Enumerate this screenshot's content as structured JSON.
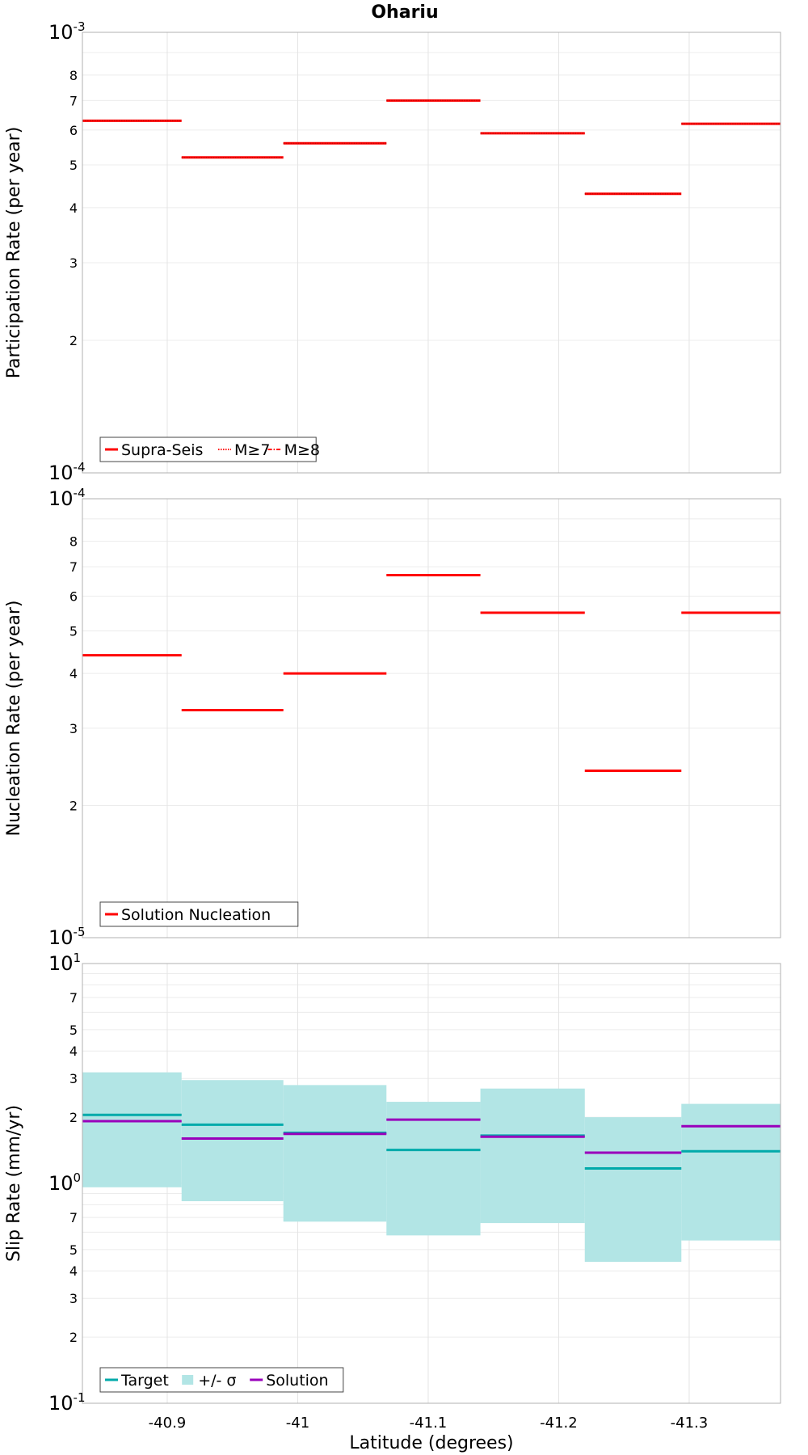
{
  "chart_data": [
    {
      "type": "line",
      "title": "Ohariu",
      "ylabel": "Participation Rate (per year)",
      "xlabel": "",
      "yscale": "log",
      "ylim": [
        0.0001,
        0.001
      ],
      "xlim": [
        -40.835,
        -41.37
      ],
      "grid": true,
      "legend": "bottom-left",
      "ytick_major": [
        {
          "base": "10",
          "exp": "-4"
        },
        {
          "base": "10",
          "exp": "-3"
        }
      ],
      "ytick_minor": [
        "2",
        "3",
        "4",
        "5",
        "6",
        "7",
        "8"
      ],
      "segments_x": [
        [
          -40.835,
          -40.911
        ],
        [
          -40.911,
          -40.989
        ],
        [
          -40.989,
          -41.068
        ],
        [
          -41.068,
          -41.14
        ],
        [
          -41.14,
          -41.22
        ],
        [
          -41.22,
          -41.294
        ],
        [
          -41.294,
          -41.37
        ]
      ],
      "series": [
        {
          "name": "Supra-Seis",
          "style": "solid",
          "color": "#ff0000",
          "values": [
            0.00063,
            0.00052,
            0.00056,
            0.0007,
            0.00059,
            0.00043,
            0.00062
          ]
        },
        {
          "name": "M≥7",
          "style": "dotted",
          "color": "#ff0000",
          "values": [
            0.00063,
            0.00052,
            0.00056,
            0.0007,
            0.00059,
            0.00043,
            0.00062
          ]
        },
        {
          "name": "M≥8",
          "style": "dashdot",
          "color": "#ff0000",
          "values": []
        }
      ]
    },
    {
      "type": "line",
      "title": "",
      "ylabel": "Nucleation Rate (per year)",
      "xlabel": "",
      "yscale": "log",
      "ylim": [
        1e-05,
        0.0001
      ],
      "xlim": [
        -40.835,
        -41.37
      ],
      "grid": true,
      "legend": "bottom-left",
      "ytick_major": [
        {
          "base": "10",
          "exp": "-5"
        },
        {
          "base": "10",
          "exp": "-4"
        }
      ],
      "ytick_minor": [
        "2",
        "3",
        "4",
        "5",
        "6",
        "7",
        "8"
      ],
      "segments_x": [
        [
          -40.835,
          -40.911
        ],
        [
          -40.911,
          -40.989
        ],
        [
          -40.989,
          -41.068
        ],
        [
          -41.068,
          -41.14
        ],
        [
          -41.14,
          -41.22
        ],
        [
          -41.22,
          -41.294
        ],
        [
          -41.294,
          -41.37
        ]
      ],
      "series": [
        {
          "name": "Solution Nucleation",
          "style": "solid",
          "color": "#ff0000",
          "values": [
            4.4e-05,
            3.3e-05,
            4e-05,
            6.7e-05,
            5.5e-05,
            2.4e-05,
            5.5e-05
          ]
        }
      ]
    },
    {
      "type": "line",
      "title": "",
      "ylabel": "Slip Rate (mm/yr)",
      "xlabel": "Latitude (degrees)",
      "yscale": "log",
      "ylim": [
        0.1,
        10
      ],
      "xlim": [
        -40.835,
        -41.37
      ],
      "grid": true,
      "legend": "bottom-left",
      "ytick_major": [
        {
          "base": "10",
          "exp": "-1"
        },
        {
          "base": "10",
          "exp": "0"
        },
        {
          "base": "10",
          "exp": "1"
        }
      ],
      "ytick_minor": [
        "2",
        "3",
        "4",
        "5",
        "7"
      ],
      "xticks": [
        -40.9,
        -41.0,
        -41.1,
        -41.2,
        -41.3
      ],
      "xtick_labels": [
        "-40.9",
        "-41",
        "-41.1",
        "-41.2",
        "-41.3"
      ],
      "segments_x": [
        [
          -40.835,
          -40.911
        ],
        [
          -40.911,
          -40.989
        ],
        [
          -40.989,
          -41.068
        ],
        [
          -41.068,
          -41.14
        ],
        [
          -41.14,
          -41.22
        ],
        [
          -41.22,
          -41.294
        ],
        [
          -41.294,
          -41.37
        ]
      ],
      "series": [
        {
          "name": "Target",
          "style": "solid",
          "color": "#00aaaa",
          "values": [
            2.05,
            1.85,
            1.7,
            1.42,
            1.65,
            1.17,
            1.4
          ]
        },
        {
          "name": "+/- σ",
          "style": "band",
          "color": "#b2e5e5",
          "lower": [
            0.96,
            0.83,
            0.67,
            0.58,
            0.66,
            0.44,
            0.55
          ],
          "upper": [
            3.2,
            2.95,
            2.8,
            2.35,
            2.7,
            2.0,
            2.3
          ]
        },
        {
          "name": "Solution",
          "style": "solid",
          "color": "#9900bb",
          "values": [
            1.92,
            1.6,
            1.68,
            1.95,
            1.63,
            1.38,
            1.82
          ]
        }
      ]
    }
  ]
}
